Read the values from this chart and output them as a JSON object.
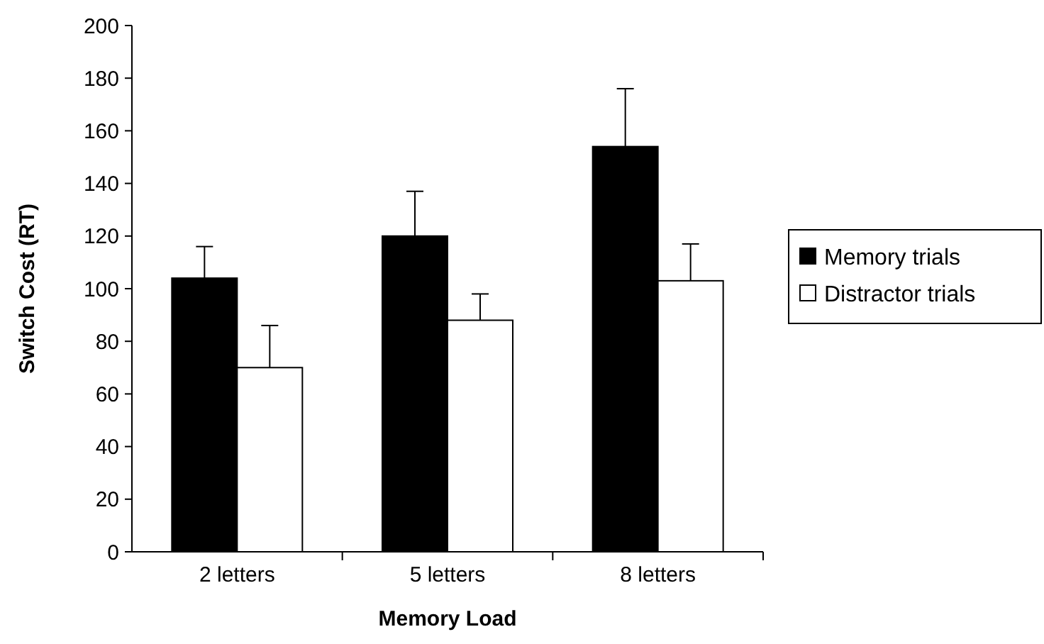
{
  "chart_data": {
    "type": "bar",
    "xlabel": "Memory Load",
    "ylabel": "Switch Cost (RT)",
    "categories": [
      "2 letters",
      "5 letters",
      "8 letters"
    ],
    "series": [
      {
        "name": "Memory trials",
        "color": "#000000",
        "values": [
          104,
          120,
          154
        ],
        "errors": [
          [
            104,
            116
          ],
          [
            120,
            137
          ],
          [
            154,
            176
          ]
        ]
      },
      {
        "name": "Distractor trials",
        "color": "#ffffff",
        "values": [
          70,
          88,
          103
        ],
        "errors": [
          [
            70,
            86
          ],
          [
            88,
            98
          ],
          [
            103,
            117
          ]
        ]
      }
    ],
    "ylim": [
      0,
      200
    ],
    "yticks": [
      0,
      20,
      40,
      60,
      80,
      100,
      120,
      140,
      160,
      180,
      200
    ],
    "legend": "right"
  }
}
